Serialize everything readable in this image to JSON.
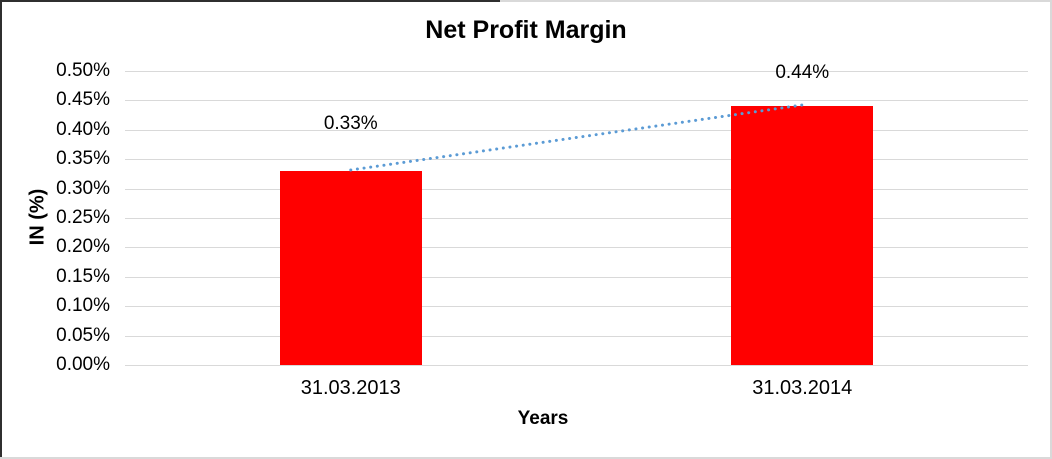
{
  "chart_data": {
    "type": "bar",
    "title": "Net Profit Margin",
    "xlabel": "Years",
    "ylabel": "IN (%)",
    "categories": [
      "31.03.2013",
      "31.03.2014"
    ],
    "series": [
      {
        "name": "Net Profit Margin",
        "values": [
          0.33,
          0.44
        ]
      }
    ],
    "data_labels": [
      "0.33%",
      "0.44%"
    ],
    "yticks_top_to_bottom": [
      "0.50%",
      "0.45%",
      "0.40%",
      "0.35%",
      "0.30%",
      "0.25%",
      "0.20%",
      "0.15%",
      "0.10%",
      "0.05%",
      "0.00%"
    ],
    "ylim": [
      0,
      0.5
    ],
    "grid": true,
    "legend": false,
    "bar_color": "#ff0000",
    "gridline_color": "#d9d9d9",
    "trendline": {
      "type": "linear",
      "style": "dotted",
      "color": "#5b9bd5"
    }
  }
}
